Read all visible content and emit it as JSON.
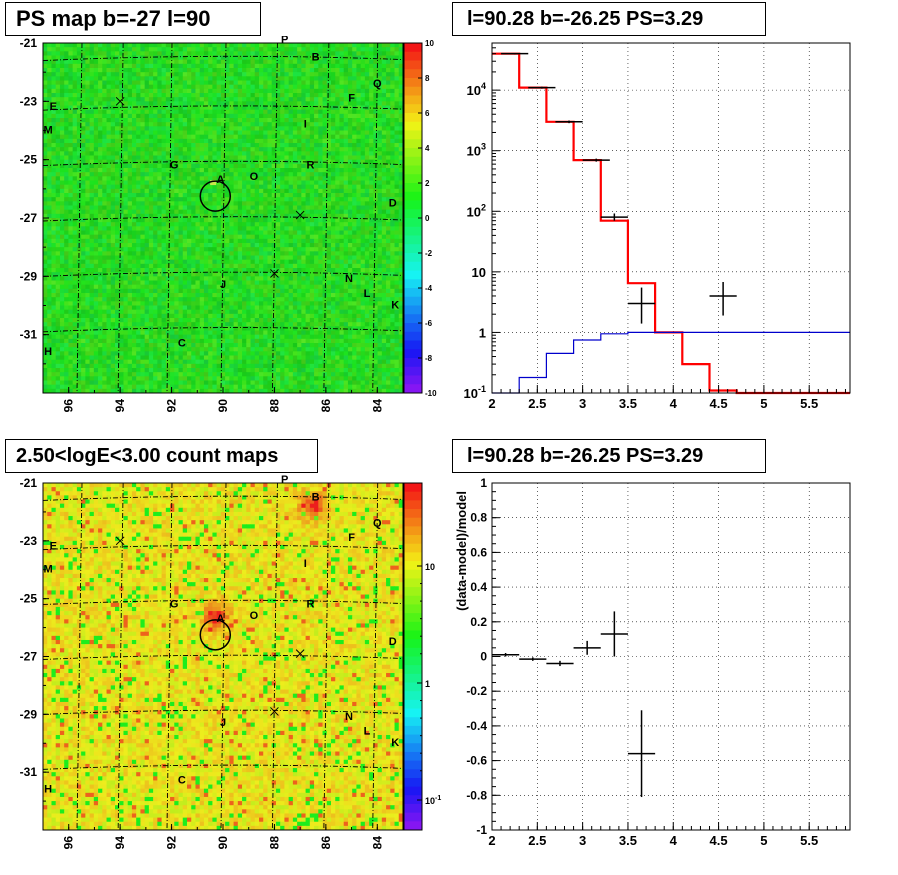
{
  "colors": {
    "frame": "#000000",
    "grid": "#000000",
    "histogram_red": "#ff0000",
    "histogram_blue": "#0000cc",
    "points": "#000000",
    "map_green": "#3ddc4a",
    "map_yellow": "#e8e83c",
    "map_red": "#ff2a1a"
  },
  "chart_data": [
    {
      "id": "ps_map",
      "type": "heatmap",
      "title": "PS map b=-27 l=90",
      "x_ticks": [
        "96",
        "94",
        "92",
        "90",
        "88",
        "86",
        "84"
      ],
      "y_ticks": [
        "-21",
        "-23",
        "-25",
        "-27",
        "-29",
        "-31"
      ],
      "xlim": [
        97,
        83
      ],
      "ylim": [
        -33,
        -21
      ],
      "colorbar": {
        "ticks": [
          "10",
          "8",
          "6",
          "4",
          "2",
          "0",
          "-2",
          "-4",
          "-6",
          "-8",
          "-10"
        ],
        "range": [
          -10,
          10
        ],
        "scale": "linear"
      },
      "source_labels": [
        {
          "name": "P",
          "l": 87.6,
          "b": -21.0
        },
        {
          "name": "B",
          "l": 86.4,
          "b": -21.6
        },
        {
          "name": "Q",
          "l": 84.0,
          "b": -22.5
        },
        {
          "name": "E",
          "l": 96.6,
          "b": -23.3
        },
        {
          "name": "F",
          "l": 85.0,
          "b": -23.0
        },
        {
          "name": "M",
          "l": 96.8,
          "b": -24.1
        },
        {
          "name": "I",
          "l": 86.8,
          "b": -23.9
        },
        {
          "name": "G",
          "l": 91.9,
          "b": -25.3
        },
        {
          "name": "R",
          "l": 86.6,
          "b": -25.3
        },
        {
          "name": "A",
          "l": 90.1,
          "b": -25.8
        },
        {
          "name": "O",
          "l": 88.8,
          "b": -25.7
        },
        {
          "name": "D",
          "l": 83.4,
          "b": -26.6
        },
        {
          "name": "J",
          "l": 90.0,
          "b": -29.4
        },
        {
          "name": "N",
          "l": 85.1,
          "b": -29.2
        },
        {
          "name": "L",
          "l": 84.4,
          "b": -29.7
        },
        {
          "name": "K",
          "l": 83.3,
          "b": -30.1
        },
        {
          "name": "C",
          "l": 91.6,
          "b": -31.4
        },
        {
          "name": "H",
          "l": 96.8,
          "b": -31.7
        }
      ],
      "circle": {
        "l": 90.3,
        "b": -26.25
      }
    },
    {
      "id": "spectrum",
      "type": "line",
      "title": "l=90.28 b=-26.25 PS=3.29",
      "xlim": [
        2,
        5.95
      ],
      "ylim_log": [
        0.1,
        60000
      ],
      "yscale": "log",
      "x_ticks": [
        "2",
        "2.5",
        "3",
        "3.5",
        "4",
        "4.5",
        "5",
        "5.5"
      ],
      "y_ticks": [
        "10^-1",
        "1",
        "10",
        "10^2",
        "10^3",
        "10^4"
      ],
      "grid": true,
      "series": [
        {
          "color": "red",
          "edges": [
            2.0,
            2.3,
            2.6,
            2.9,
            3.2,
            3.5,
            3.8,
            4.1,
            4.4,
            4.7,
            5.0,
            5.3,
            5.6,
            5.95
          ],
          "values": [
            40000,
            11000,
            3000,
            700,
            70,
            6.5,
            1.0,
            0.3,
            0.11,
            0.1,
            0.1,
            0.1,
            0.1
          ]
        },
        {
          "color": "blue",
          "edges": [
            2.0,
            2.3,
            2.6,
            2.9,
            3.2,
            3.5,
            3.8,
            4.1,
            4.4,
            4.7,
            5.0,
            5.3,
            5.6,
            5.95
          ],
          "values": [
            0.1,
            0.18,
            0.45,
            0.75,
            0.95,
            1.0,
            1.0,
            1.0,
            1.0,
            1.0,
            1.0,
            1.0,
            1.0
          ]
        }
      ],
      "points": [
        {
          "x": 2.25,
          "y": 40000,
          "xerr": 0.15,
          "ylo": 39000,
          "yhi": 41000
        },
        {
          "x": 2.55,
          "y": 11000,
          "xerr": 0.15,
          "ylo": 10600,
          "yhi": 11400
        },
        {
          "x": 2.85,
          "y": 3000,
          "xerr": 0.15,
          "ylo": 2850,
          "yhi": 3150
        },
        {
          "x": 3.15,
          "y": 700,
          "xerr": 0.15,
          "ylo": 660,
          "yhi": 740
        },
        {
          "x": 3.35,
          "y": 80,
          "xerr": 0.15,
          "ylo": 70,
          "yhi": 92
        },
        {
          "x": 3.65,
          "y": 3.0,
          "xerr": 0.15,
          "ylo": 1.4,
          "yhi": 5.5
        },
        {
          "x": 4.55,
          "y": 4.0,
          "xerr": 0.15,
          "ylo": 1.9,
          "yhi": 6.8
        }
      ]
    },
    {
      "id": "count_map",
      "type": "heatmap",
      "title": "2.50<logE<3.00 count maps",
      "x_ticks": [
        "96",
        "94",
        "92",
        "90",
        "88",
        "86",
        "84"
      ],
      "y_ticks": [
        "-21",
        "-23",
        "-25",
        "-27",
        "-29",
        "-31"
      ],
      "xlim": [
        97,
        83
      ],
      "ylim": [
        -33,
        -21
      ],
      "colorbar": {
        "ticks": [
          "10",
          "1",
          "10^-1"
        ],
        "scale": "log"
      },
      "source_labels": [
        {
          "name": "P",
          "l": 87.6,
          "b": -21.0
        },
        {
          "name": "B",
          "l": 86.4,
          "b": -21.6
        },
        {
          "name": "Q",
          "l": 84.0,
          "b": -22.5
        },
        {
          "name": "E",
          "l": 96.6,
          "b": -23.3
        },
        {
          "name": "F",
          "l": 85.0,
          "b": -23.0
        },
        {
          "name": "M",
          "l": 96.8,
          "b": -24.1
        },
        {
          "name": "I",
          "l": 86.8,
          "b": -23.9
        },
        {
          "name": "G",
          "l": 91.9,
          "b": -25.3
        },
        {
          "name": "R",
          "l": 86.6,
          "b": -25.3
        },
        {
          "name": "A",
          "l": 90.1,
          "b": -25.8
        },
        {
          "name": "O",
          "l": 88.8,
          "b": -25.7
        },
        {
          "name": "D",
          "l": 83.4,
          "b": -26.6
        },
        {
          "name": "J",
          "l": 90.0,
          "b": -29.4
        },
        {
          "name": "N",
          "l": 85.1,
          "b": -29.2
        },
        {
          "name": "L",
          "l": 84.4,
          "b": -29.7
        },
        {
          "name": "K",
          "l": 83.3,
          "b": -30.1
        },
        {
          "name": "C",
          "l": 91.6,
          "b": -31.4
        },
        {
          "name": "H",
          "l": 96.8,
          "b": -31.7
        }
      ],
      "circle": {
        "l": 90.3,
        "b": -26.25
      },
      "hotspots": [
        {
          "name": "A",
          "l": 90.3,
          "b": -25.6
        },
        {
          "name": "B",
          "l": 86.5,
          "b": -21.8
        }
      ]
    },
    {
      "id": "residual",
      "type": "scatter",
      "title": "l=90.28 b=-26.25 PS=3.29",
      "ylabel": "(data-model)/model",
      "xlim": [
        2,
        5.95
      ],
      "ylim": [
        -1,
        1
      ],
      "x_ticks": [
        "2",
        "2.5",
        "3",
        "3.5",
        "4",
        "4.5",
        "5",
        "5.5"
      ],
      "y_ticks": [
        "1",
        "0.8",
        "0.6",
        "0.4",
        "0.2",
        "0",
        "-0.2",
        "-0.4",
        "-0.6",
        "-0.8",
        "-1"
      ],
      "grid": true,
      "points": [
        {
          "x": 2.15,
          "y": 0.01,
          "xerr": 0.15,
          "yerr": 0.01
        },
        {
          "x": 2.45,
          "y": -0.015,
          "xerr": 0.15,
          "yerr": 0.01
        },
        {
          "x": 2.75,
          "y": -0.04,
          "xerr": 0.15,
          "yerr": 0.015
        },
        {
          "x": 3.05,
          "y": 0.05,
          "xerr": 0.15,
          "yerr": 0.04
        },
        {
          "x": 3.35,
          "y": 0.13,
          "xerr": 0.15,
          "yerr": 0.13
        },
        {
          "x": 3.65,
          "y": -0.56,
          "xerr": 0.15,
          "yerr": 0.25
        }
      ]
    }
  ]
}
